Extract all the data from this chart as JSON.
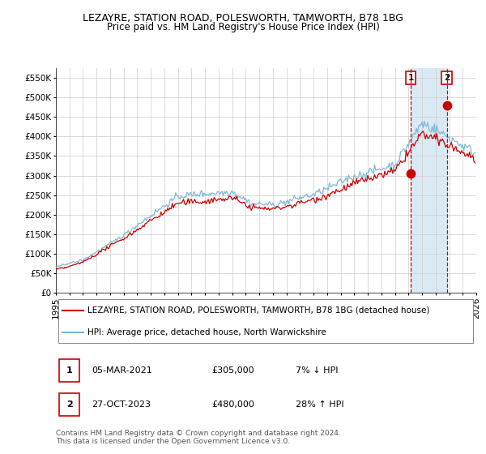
{
  "title": "LEZAYRE, STATION ROAD, POLESWORTH, TAMWORTH, B78 1BG",
  "subtitle": "Price paid vs. HM Land Registry's House Price Index (HPI)",
  "ylabel_ticks": [
    "£0",
    "£50K",
    "£100K",
    "£150K",
    "£200K",
    "£250K",
    "£300K",
    "£350K",
    "£400K",
    "£450K",
    "£500K",
    "£550K"
  ],
  "ylim": [
    0,
    575000
  ],
  "ytick_values": [
    0,
    50000,
    100000,
    150000,
    200000,
    250000,
    300000,
    350000,
    400000,
    450000,
    500000,
    550000
  ],
  "start_year": 1995,
  "end_year": 2026,
  "hpi_color": "#7fb8d8",
  "price_color": "#cc0000",
  "background_color": "#ffffff",
  "grid_color": "#cccccc",
  "point1_value": 305000,
  "point1_label": "1",
  "point2_value": 480000,
  "point2_label": "2",
  "legend_line1": "LEZAYRE, STATION ROAD, POLESWORTH, TAMWORTH, B78 1BG (detached house)",
  "legend_line2": "HPI: Average price, detached house, North Warwickshire",
  "table_row1": [
    "1",
    "05-MAR-2021",
    "£305,000",
    "7% ↓ HPI"
  ],
  "table_row2": [
    "2",
    "27-OCT-2023",
    "£480,000",
    "28% ↑ HPI"
  ],
  "footer": "Contains HM Land Registry data © Crown copyright and database right 2024.\nThis data is licensed under the Open Government Licence v3.0.",
  "title_fontsize": 9.0,
  "subtitle_fontsize": 8.5,
  "tick_fontsize": 7.5,
  "legend_fontsize": 7.5,
  "table_fontsize": 8.0,
  "footer_fontsize": 6.5,
  "highlight_color": "#daeaf5"
}
